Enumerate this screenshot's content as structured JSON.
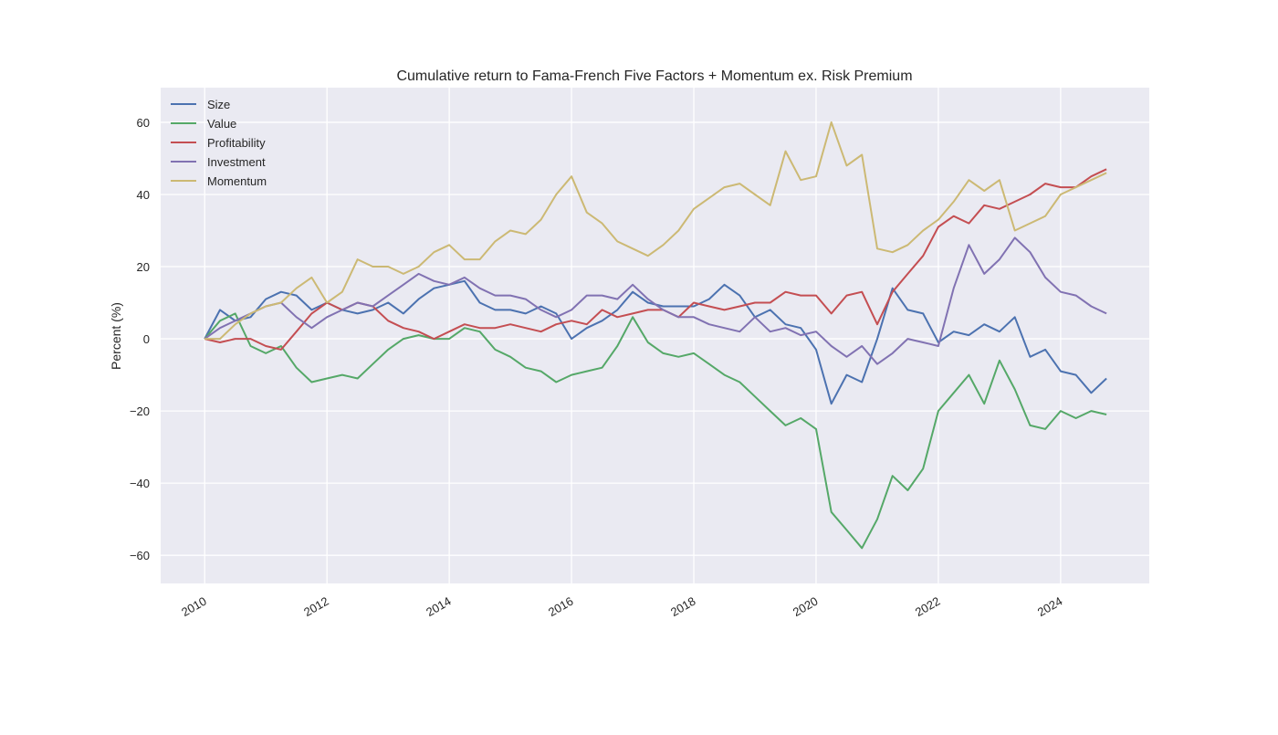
{
  "chart_data": {
    "type": "line",
    "title": "Cumulative return to Fama-French Five Factors + Momentum ex. Risk Premium",
    "xlabel": "",
    "ylabel": "Percent (%)",
    "xlim": [
      2009.28,
      2025.45
    ],
    "ylim": [
      -67.8,
      69.6
    ],
    "grid": true,
    "legend_position": "top-left",
    "x_start": 2010,
    "x_step": 0.25,
    "xticks": [
      2010,
      2012,
      2014,
      2016,
      2018,
      2020,
      2022,
      2024
    ],
    "xtick_labels": [
      "2010",
      "2012",
      "2014",
      "2016",
      "2018",
      "2020",
      "2022",
      "2024"
    ],
    "yticks": [
      -60,
      -40,
      -20,
      0,
      20,
      40,
      60
    ],
    "ytick_labels": [
      "−60",
      "−40",
      "−20",
      "0",
      "20",
      "40",
      "60"
    ],
    "series": [
      {
        "name": "Size",
        "color": "#4c72b0",
        "values": [
          0,
          8,
          5,
          6,
          11,
          13,
          12,
          8,
          10,
          8,
          7,
          8,
          10,
          7,
          11,
          14,
          15,
          16,
          10,
          8,
          8,
          7,
          9,
          7,
          0,
          3,
          5,
          8,
          13,
          10,
          9,
          9,
          9,
          11,
          15,
          12,
          6,
          8,
          4,
          3,
          -3,
          -18,
          -10,
          -12,
          0,
          14,
          8,
          7,
          -1,
          2,
          1,
          4,
          2,
          6,
          -5,
          -3,
          -9,
          -10,
          -15,
          -11
        ]
      },
      {
        "name": "Value",
        "color": "#55a868",
        "values": [
          0,
          5,
          7,
          -2,
          -4,
          -2,
          -8,
          -12,
          -11,
          -10,
          -11,
          -7,
          -3,
          0,
          1,
          0,
          0,
          3,
          2,
          -3,
          -5,
          -8,
          -9,
          -12,
          -10,
          -9,
          -8,
          -2,
          6,
          -1,
          -4,
          -5,
          -4,
          -7,
          -10,
          -12,
          -16,
          -20,
          -24,
          -22,
          -25,
          -48,
          -53,
          -58,
          -50,
          -38,
          -42,
          -36,
          -20,
          -15,
          -10,
          -18,
          -6,
          -14,
          -24,
          -25,
          -20,
          -22,
          -20,
          -21
        ]
      },
      {
        "name": "Profitability",
        "color": "#c44e52",
        "values": [
          0,
          -1,
          0,
          0,
          -2,
          -3,
          2,
          7,
          10,
          8,
          10,
          9,
          5,
          3,
          2,
          0,
          2,
          4,
          3,
          3,
          4,
          3,
          2,
          4,
          5,
          4,
          8,
          6,
          7,
          8,
          8,
          6,
          10,
          9,
          8,
          9,
          10,
          10,
          13,
          12,
          12,
          7,
          12,
          13,
          4,
          13,
          18,
          23,
          31,
          34,
          32,
          37,
          36,
          38,
          40,
          43,
          42,
          42,
          45,
          47
        ]
      },
      {
        "name": "Investment",
        "color": "#8172b2",
        "values": [
          0,
          3,
          5,
          7,
          9,
          10,
          6,
          3,
          6,
          8,
          10,
          9,
          12,
          15,
          18,
          16,
          15,
          17,
          14,
          12,
          12,
          11,
          8,
          6,
          8,
          12,
          12,
          11,
          15,
          11,
          8,
          6,
          6,
          4,
          3,
          2,
          6,
          2,
          3,
          1,
          2,
          -2,
          -5,
          -2,
          -7,
          -4,
          0,
          -1,
          -2,
          14,
          26,
          18,
          22,
          28,
          24,
          17,
          13,
          12,
          9,
          7
        ]
      },
      {
        "name": "Momentum",
        "color": "#ccb974",
        "values": [
          0,
          0,
          4,
          7,
          9,
          10,
          14,
          17,
          10,
          13,
          22,
          20,
          20,
          18,
          20,
          24,
          26,
          22,
          22,
          27,
          30,
          29,
          33,
          40,
          45,
          35,
          32,
          27,
          25,
          23,
          26,
          30,
          36,
          39,
          42,
          43,
          40,
          37,
          52,
          44,
          45,
          60,
          48,
          51,
          25,
          24,
          26,
          30,
          33,
          38,
          44,
          41,
          44,
          30,
          32,
          34,
          40,
          42,
          44,
          46
        ]
      }
    ]
  }
}
